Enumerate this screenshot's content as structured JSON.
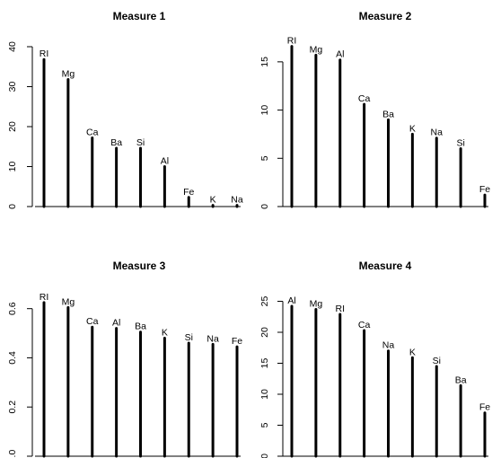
{
  "chart_data": [
    {
      "type": "bar",
      "title": "Measure 1",
      "xlabel": "",
      "ylabel": "",
      "categories": [
        "RI",
        "Mg",
        "Ca",
        "Ba",
        "Si",
        "Al",
        "Fe",
        "K",
        "Na"
      ],
      "values": [
        36.8,
        31.8,
        17.2,
        14.6,
        14.6,
        10.0,
        2.3,
        0.3,
        0.3
      ],
      "ylim": [
        0,
        40
      ],
      "yticks": [
        0,
        10,
        20,
        30,
        40
      ]
    },
    {
      "type": "bar",
      "title": "Measure 2",
      "xlabel": "",
      "ylabel": "",
      "categories": [
        "RI",
        "Mg",
        "Al",
        "Ca",
        "Ba",
        "K",
        "Na",
        "Si",
        "Fe"
      ],
      "values": [
        16.6,
        15.7,
        15.2,
        10.6,
        9.0,
        7.5,
        7.1,
        6.0,
        1.2
      ],
      "ylim": [
        0,
        17.5
      ],
      "yticks": [
        0,
        5,
        10,
        15
      ]
    },
    {
      "type": "bar",
      "title": "Measure 3",
      "xlabel": "",
      "ylabel": "",
      "categories": [
        "RI",
        "Mg",
        "Ca",
        "Al",
        "Ba",
        "K",
        "Si",
        "Na",
        "Fe"
      ],
      "values": [
        0.625,
        0.605,
        0.525,
        0.52,
        0.505,
        0.48,
        0.46,
        0.455,
        0.445
      ],
      "ylim": [
        0,
        0.65
      ],
      "yticks": [
        0.0,
        0.2,
        0.4,
        0.6
      ]
    },
    {
      "type": "bar",
      "title": "Measure 4",
      "xlabel": "",
      "ylabel": "",
      "categories": [
        "Al",
        "Mg",
        "RI",
        "Ca",
        "Na",
        "K",
        "Si",
        "Ba",
        "Fe"
      ],
      "values": [
        24.2,
        23.7,
        22.9,
        20.3,
        17.0,
        15.9,
        14.5,
        11.4,
        7.0
      ],
      "ylim": [
        0,
        25.8
      ],
      "yticks": [
        0,
        5,
        10,
        15,
        20,
        25
      ]
    }
  ],
  "style": {
    "bar_color": "#000000",
    "background": "#ffffff"
  }
}
